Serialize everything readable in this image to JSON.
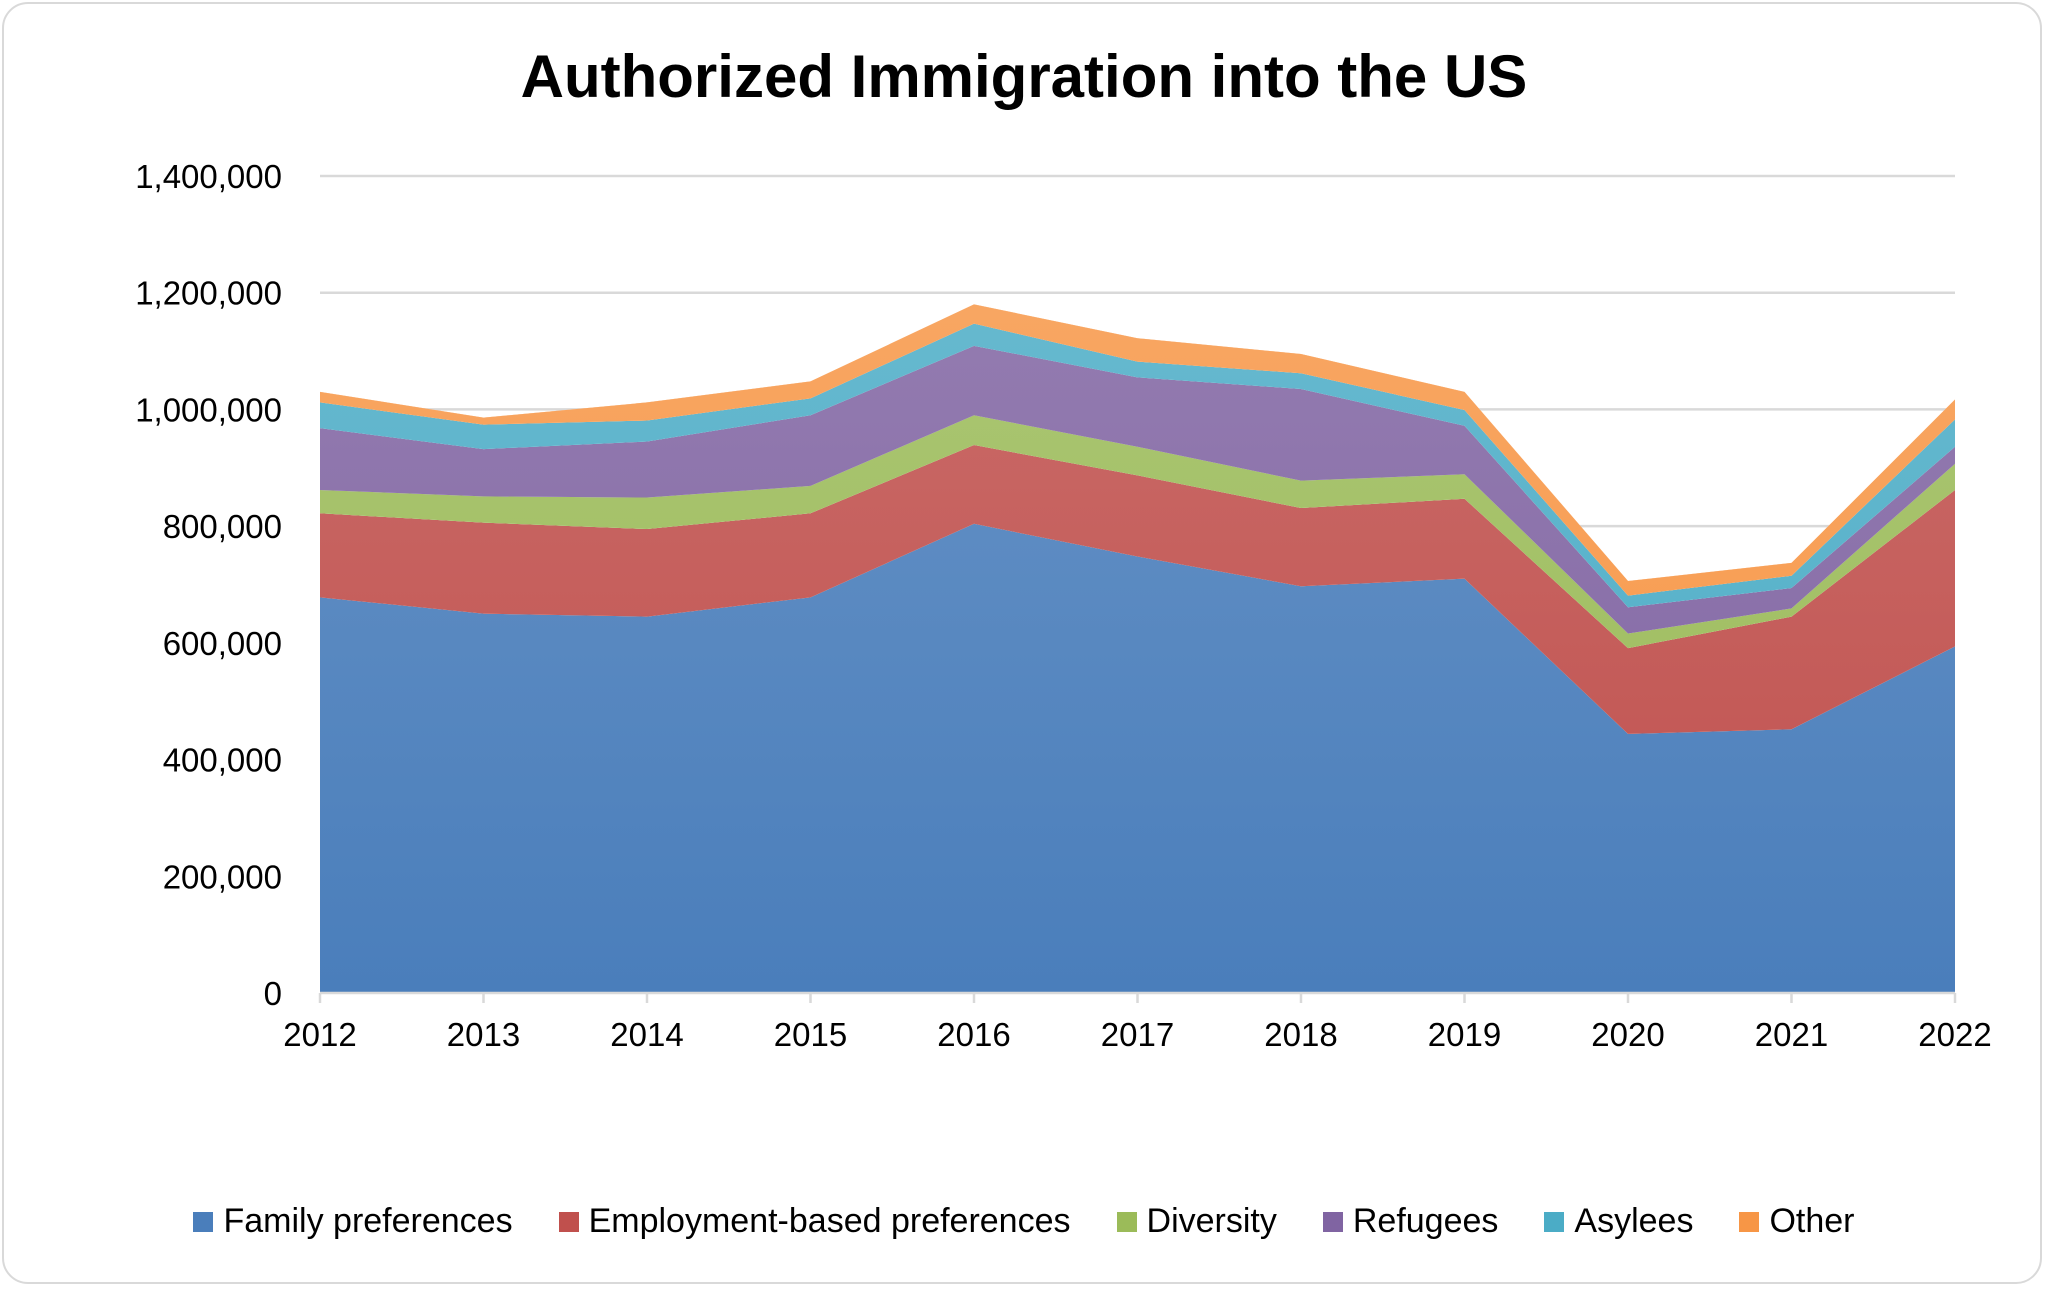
{
  "chart_data": {
    "type": "area",
    "stacked": true,
    "title": "Authorized Immigration into the US",
    "xlabel": "",
    "ylabel": "",
    "categories": [
      "2012",
      "2013",
      "2014",
      "2015",
      "2016",
      "2017",
      "2018",
      "2019",
      "2020",
      "2021",
      "2022"
    ],
    "ylim": [
      0,
      1400000
    ],
    "yticks": [
      0,
      200000,
      400000,
      600000,
      800000,
      1000000,
      1200000,
      1400000
    ],
    "ytick_labels": [
      "0",
      "200,000",
      "400,000",
      "600,000",
      "800,000",
      "1,000,000",
      "1,200,000",
      "1,400,000"
    ],
    "grid": "horizontal",
    "legend_position": "bottom",
    "series": [
      {
        "name": "Family preferences",
        "color": "#4a7ebb",
        "values": [
          678000,
          650000,
          645000,
          678000,
          804000,
          748000,
          697000,
          710000,
          444000,
          452000,
          594000
        ]
      },
      {
        "name": "Employment-based preferences",
        "color": "#c0504d",
        "values": [
          144000,
          156000,
          150000,
          144000,
          135000,
          139000,
          134000,
          137000,
          147000,
          193000,
          268000
        ]
      },
      {
        "name": "Diversity",
        "color": "#9bbb59",
        "values": [
          40000,
          45000,
          54000,
          47000,
          51000,
          49000,
          47000,
          42000,
          25000,
          14000,
          45000
        ]
      },
      {
        "name": "Refugees",
        "color": "#8064a2",
        "values": [
          106000,
          81000,
          96000,
          121000,
          119000,
          119000,
          157000,
          83000,
          45000,
          35000,
          29000
        ]
      },
      {
        "name": "Asylees",
        "color": "#4bacc6",
        "values": [
          44000,
          42000,
          36000,
          29000,
          38000,
          27000,
          27000,
          27000,
          20000,
          21000,
          47000
        ]
      },
      {
        "name": "Other",
        "color": "#f79646",
        "values": [
          18000,
          12000,
          31000,
          29000,
          33000,
          40000,
          33000,
          31000,
          25000,
          22000,
          34000
        ]
      }
    ]
  }
}
